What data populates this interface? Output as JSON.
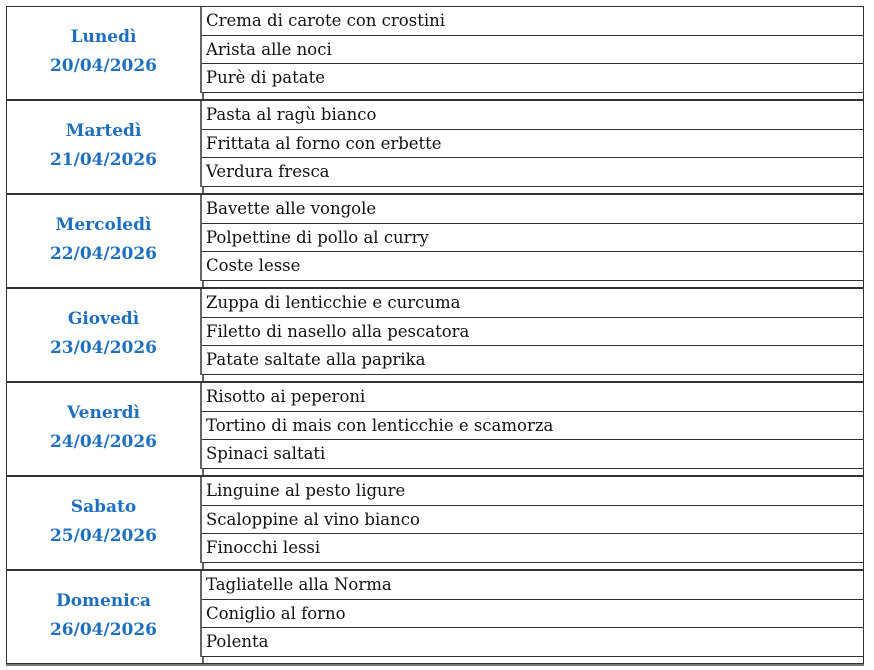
{
  "days": [
    {
      "name": "Lunedì",
      "date": "20/04/2026",
      "dishes": [
        "Crema di carote con crostini",
        "Arista alle noci",
        "Purè di patate"
      ]
    },
    {
      "name": "Martedì",
      "date": "21/04/2026",
      "dishes": [
        "Pasta al ragù bianco",
        "Frittata al forno con erbette",
        "Verdura fresca"
      ]
    },
    {
      "name": "Mercoledì",
      "date": "22/04/2026",
      "dishes": [
        "Bavette alle vongole",
        "Polpettine di pollo al curry",
        "Coste lesse"
      ]
    },
    {
      "name": "Giovedì",
      "date": "23/04/2026",
      "dishes": [
        "Zuppa di lenticchie e curcuma",
        "Filetto di nasello alla pescatora",
        "Patate saltate alla paprika"
      ]
    },
    {
      "name": "Venerdì",
      "date": "24/04/2026",
      "dishes": [
        "Risotto ai peperoni",
        "Tortino di mais con lenticchie e scamorza",
        "Spinaci saltati"
      ]
    },
    {
      "name": "Sabato",
      "date": "25/04/2026",
      "dishes": [
        "Linguine al pesto ligure",
        "Scaloppine al vino bianco",
        "Finocchi lessi"
      ]
    },
    {
      "name": "Domenica",
      "date": "26/04/2026",
      "dishes": [
        "Tagliatelle alla Norma",
        "Coniglio al forno",
        "Polenta"
      ]
    }
  ],
  "colors": {
    "day_text": "#1f6fbf",
    "border": "#333333"
  }
}
